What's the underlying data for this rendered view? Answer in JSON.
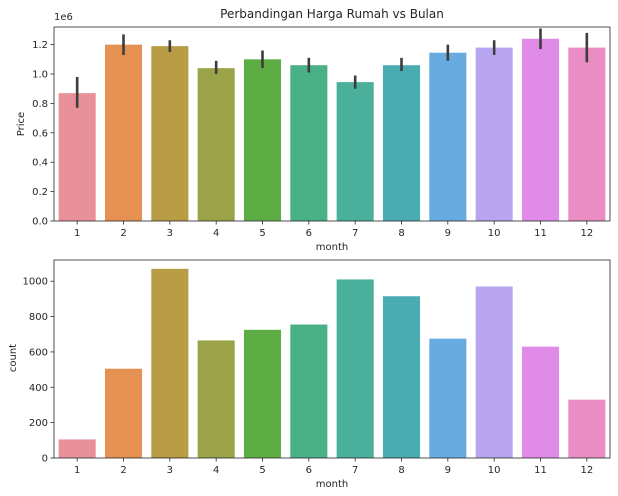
{
  "chart_data": [
    {
      "type": "bar",
      "title": "Perbandingan Harga Rumah vs Bulan",
      "xlabel": "month",
      "ylabel": "Price",
      "offset_label": "1e6",
      "categories": [
        "1",
        "2",
        "3",
        "4",
        "5",
        "6",
        "7",
        "8",
        "9",
        "10",
        "11",
        "12"
      ],
      "values": [
        0.87,
        1.2,
        1.19,
        1.04,
        1.1,
        1.06,
        0.945,
        1.06,
        1.145,
        1.18,
        1.24,
        1.18
      ],
      "error_bars": [
        [
          0.77,
          0.98
        ],
        [
          1.13,
          1.27
        ],
        [
          1.15,
          1.23
        ],
        [
          1.0,
          1.09
        ],
        [
          1.04,
          1.16
        ],
        [
          1.01,
          1.11
        ],
        [
          0.9,
          0.99
        ],
        [
          1.02,
          1.11
        ],
        [
          1.09,
          1.2
        ],
        [
          1.13,
          1.23
        ],
        [
          1.17,
          1.31
        ],
        [
          1.08,
          1.28
        ]
      ],
      "yticks": [
        "0.0",
        "0.2",
        "0.4",
        "0.6",
        "0.8",
        "1.0",
        "1.2"
      ],
      "ylim": [
        0,
        1.32
      ],
      "grid": false
    },
    {
      "type": "bar",
      "title": "",
      "xlabel": "month",
      "ylabel": "count",
      "categories": [
        "1",
        "2",
        "3",
        "4",
        "5",
        "6",
        "7",
        "8",
        "9",
        "10",
        "11",
        "12"
      ],
      "values": [
        105,
        505,
        1070,
        665,
        725,
        755,
        1010,
        915,
        675,
        970,
        630,
        330
      ],
      "yticks": [
        "0",
        "200",
        "400",
        "600",
        "800",
        "1000"
      ],
      "ylim": [
        0,
        1120
      ],
      "grid": false
    }
  ],
  "palette": [
    "#e8919a",
    "#e59152",
    "#b89c46",
    "#9ba348",
    "#5ead44",
    "#4ab085",
    "#4aaf9b",
    "#49acb2",
    "#67abe0",
    "#b7a6ef",
    "#e08be8",
    "#e98dc4"
  ],
  "error_color": "#3d3d3d"
}
